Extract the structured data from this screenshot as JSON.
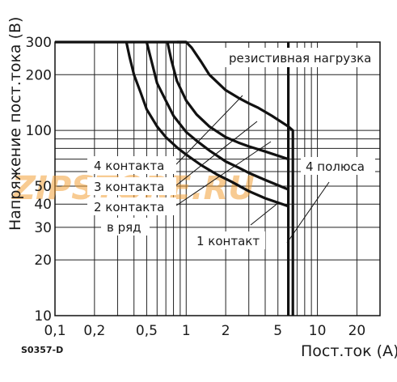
{
  "chart_data": {
    "type": "line",
    "xscale": "log",
    "yscale": "log",
    "xlim": [
      0.1,
      30
    ],
    "ylim": [
      10,
      300
    ],
    "xticks": [
      "0,1",
      "0,2",
      "0,5",
      "1",
      "2",
      "5",
      "10",
      "20"
    ],
    "yticks": [
      "10",
      "20",
      "30",
      "40",
      "50",
      "100",
      "200",
      "300"
    ],
    "xlabel": "Пост.ток (А)",
    "ylabel": "Напряжение пост.тока (В)",
    "code": "S0357-D",
    "grid": true,
    "series": [
      {
        "name": "4 контакта в ряд",
        "label": "4 контакта",
        "x": [
          0.35,
          0.37,
          0.4,
          0.45,
          0.5,
          0.6,
          0.7,
          0.85,
          1.0,
          1.3,
          1.7,
          2.2,
          3.0,
          4.0,
          6.0
        ],
        "y": [
          300,
          250,
          200,
          160,
          130,
          105,
          92,
          81,
          74,
          65,
          58,
          53,
          47,
          43,
          39
        ]
      },
      {
        "name": "3 контакта в ряд",
        "label": "3 контакта",
        "x": [
          0.5,
          0.55,
          0.6,
          0.7,
          0.8,
          1.0,
          1.2,
          1.5,
          2.0,
          2.5,
          3.0,
          4.0,
          6.0
        ],
        "y": [
          300,
          230,
          180,
          145,
          120,
          98,
          88,
          78,
          68,
          63,
          59,
          54,
          48
        ]
      },
      {
        "name": "2 контакта в ряд",
        "label": "2 контакта",
        "x": [
          0.72,
          0.77,
          0.85,
          1.0,
          1.2,
          1.5,
          2.0,
          2.5,
          3.0,
          4.0,
          6.0
        ],
        "y": [
          300,
          240,
          185,
          145,
          122,
          105,
          92,
          86,
          82,
          77,
          70
        ]
      },
      {
        "name": "резистивная нагрузка",
        "label": "резистивная нагрузка",
        "x": [
          0.85,
          1.0,
          1.1,
          1.3,
          1.5,
          2.0,
          2.5,
          3.0,
          3.5,
          4.5,
          6.0,
          6.5,
          6.5
        ],
        "y": [
          300,
          300,
          280,
          235,
          200,
          165,
          150,
          140,
          133,
          120,
          105,
          100,
          10
        ]
      },
      {
        "name": "4 полюса",
        "label": "4 полюса",
        "x": [
          6.0,
          6.0
        ],
        "y": [
          10,
          300
        ]
      }
    ],
    "annotations": [
      "резистивная нагрузка",
      "4 контакта",
      "3 контакта",
      "2 контакта",
      "в ряд",
      "1 контакт",
      "4 полюса"
    ],
    "watermark": "ZIPSTORE.RU"
  }
}
